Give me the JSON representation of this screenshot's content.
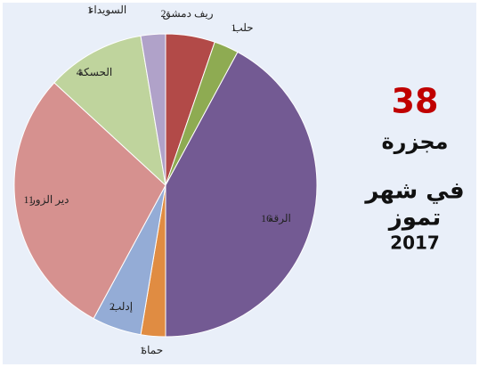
{
  "chart_data": {
    "type": "pie",
    "categories": [
      "ريف دمشق",
      "حلب",
      "الرقة",
      "حماة",
      "إدلب",
      "دير الزور",
      "الحسكة",
      "السويداء"
    ],
    "values": [
      2,
      1,
      16,
      1,
      2,
      11,
      4,
      1
    ],
    "colors": [
      "#b24a48",
      "#8eab52",
      "#735a93",
      "#e08c42",
      "#94acd6",
      "#d6918f",
      "#bfd49d",
      "#b0a2c9"
    ],
    "summary": {
      "total": "38",
      "line1": "مجزرة",
      "line2": "في شهر",
      "line3": "تموز",
      "line4": "2017"
    }
  }
}
